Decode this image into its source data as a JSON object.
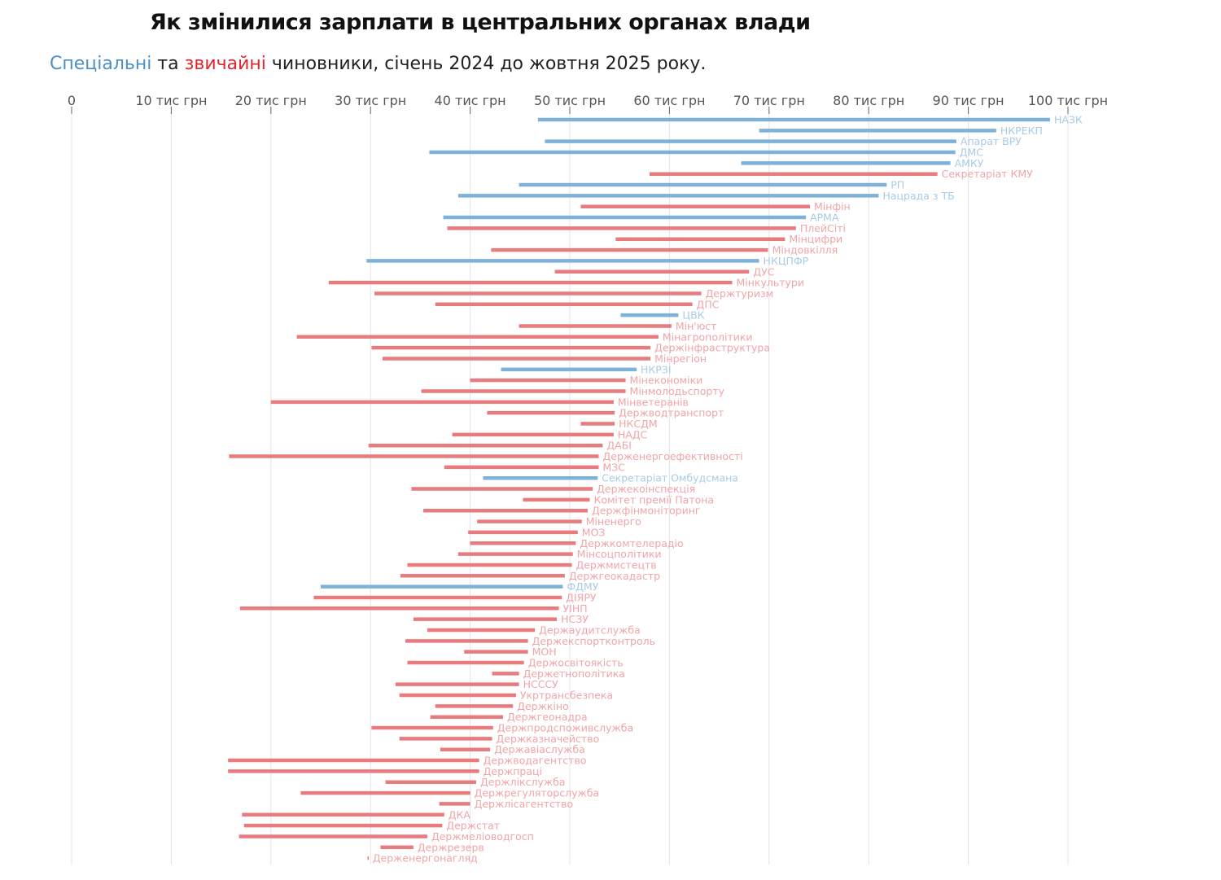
{
  "title": "Як змінилися зарплати в центральних органах влади",
  "subtitle": {
    "special": "Спеціальні",
    "and": " та ",
    "ordinary": "звичайні",
    "rest": " чиновники, січень 2024 до жовтня 2025 року."
  },
  "colors": {
    "special": "#7fb2d8",
    "ordinary": "#e87b7e",
    "special_label": "#a9cbe6",
    "ordinary_label": "#f0a5a8",
    "grid": "#e4e4e8"
  },
  "chart_data": {
    "type": "dumbbell-bar",
    "xlim": [
      0,
      100
    ],
    "x_ticks": [
      {
        "v": 0,
        "label": "0"
      },
      {
        "v": 10,
        "label": "10 тис грн"
      },
      {
        "v": 20,
        "label": "20 тис грн"
      },
      {
        "v": 30,
        "label": "30 тис грн"
      },
      {
        "v": 40,
        "label": "40 тис грн"
      },
      {
        "v": 50,
        "label": "50 тис грн"
      },
      {
        "v": 60,
        "label": "60 тис грн"
      },
      {
        "v": 70,
        "label": "70 тис грн"
      },
      {
        "v": 80,
        "label": "80 тис грн"
      },
      {
        "v": 90,
        "label": "90 тис грн"
      },
      {
        "v": 100,
        "label": "100 тис грн"
      }
    ],
    "grid": true,
    "series_fields": [
      "name",
      "jan_2024",
      "oct_2025",
      "type"
    ],
    "rows": [
      [
        "НАЗК",
        46.8,
        98.2,
        "special"
      ],
      [
        "НКРЕКП",
        69.0,
        92.8,
        "special"
      ],
      [
        "Апарат ВРУ",
        47.5,
        88.8,
        "special"
      ],
      [
        "ДМС",
        35.9,
        88.7,
        "special"
      ],
      [
        "АМКУ",
        67.2,
        88.2,
        "special"
      ],
      [
        "Секретаріат КМУ",
        58.0,
        86.9,
        "ordinary"
      ],
      [
        "РП",
        44.9,
        81.8,
        "special"
      ],
      [
        "Нацрада з ТБ",
        38.8,
        81.0,
        "special"
      ],
      [
        "Мінфін",
        51.1,
        74.1,
        "ordinary"
      ],
      [
        "АРМА",
        37.3,
        73.7,
        "special"
      ],
      [
        "ПлейСіті",
        37.7,
        72.7,
        "ordinary"
      ],
      [
        "Мінцифри",
        54.6,
        71.6,
        "ordinary"
      ],
      [
        "Міндовкілля",
        42.1,
        69.9,
        "ordinary"
      ],
      [
        "НКЦПФР",
        29.6,
        69.0,
        "special"
      ],
      [
        "ДУС",
        48.5,
        68.0,
        "ordinary"
      ],
      [
        "Мінкультури",
        25.8,
        66.3,
        "ordinary"
      ],
      [
        "Держтуризм",
        30.4,
        63.2,
        "ordinary"
      ],
      [
        "ДПС",
        36.5,
        62.3,
        "ordinary"
      ],
      [
        "ЦВК",
        55.1,
        60.9,
        "special"
      ],
      [
        "Мін'юст",
        44.9,
        60.2,
        "ordinary"
      ],
      [
        "Мінагрополітики",
        22.6,
        58.9,
        "ordinary"
      ],
      [
        "Держінфраструктура",
        30.1,
        58.1,
        "ordinary"
      ],
      [
        "Мінрегіон",
        31.2,
        58.1,
        "ordinary"
      ],
      [
        "НКРЗІ",
        43.1,
        56.7,
        "special"
      ],
      [
        "Мінекономіки",
        40.0,
        55.6,
        "ordinary"
      ],
      [
        "Мінмолодьспорту",
        35.1,
        55.6,
        "ordinary"
      ],
      [
        "Мінветеранів",
        20.0,
        54.4,
        "ordinary"
      ],
      [
        "Держводтранспорт",
        41.7,
        54.5,
        "ordinary"
      ],
      [
        "НКСДМ",
        51.1,
        54.5,
        "ordinary"
      ],
      [
        "НАДС",
        38.2,
        54.4,
        "ordinary"
      ],
      [
        "ДАБІ",
        29.8,
        53.3,
        "ordinary"
      ],
      [
        "Держенергоефективності",
        15.8,
        52.9,
        "ordinary"
      ],
      [
        "МЗС",
        37.4,
        52.9,
        "ordinary"
      ],
      [
        "Секретаріат Омбудсмана",
        41.3,
        52.8,
        "special"
      ],
      [
        "Держекоінспекція",
        34.1,
        52.3,
        "ordinary"
      ],
      [
        "Комітет премії Патона",
        45.3,
        52.0,
        "ordinary"
      ],
      [
        "Держфінмоніторинг",
        35.3,
        51.8,
        "ordinary"
      ],
      [
        "Міненерго",
        40.7,
        51.2,
        "ordinary"
      ],
      [
        "МОЗ",
        39.8,
        50.8,
        "ordinary"
      ],
      [
        "Держкомтелерадіо",
        40.0,
        50.6,
        "ordinary"
      ],
      [
        "Мінсоцполітики",
        38.8,
        50.3,
        "ordinary"
      ],
      [
        "Держмистецтв",
        33.7,
        50.2,
        "ordinary"
      ],
      [
        "Держгеокадастр",
        33.0,
        49.5,
        "ordinary"
      ],
      [
        "ФДМУ",
        25.0,
        49.3,
        "special"
      ],
      [
        "ДІЯРУ",
        24.3,
        49.2,
        "ordinary"
      ],
      [
        "УІНП",
        16.9,
        48.9,
        "ordinary"
      ],
      [
        "НСЗУ",
        34.3,
        48.7,
        "ordinary"
      ],
      [
        "Держаудитслужба",
        35.7,
        46.5,
        "ordinary"
      ],
      [
        "Держекспортконтроль",
        33.5,
        45.8,
        "ordinary"
      ],
      [
        "МОН",
        39.4,
        45.8,
        "ordinary"
      ],
      [
        "Держосвітоякість",
        33.7,
        45.4,
        "ordinary"
      ],
      [
        "Держетнополітика",
        42.2,
        44.9,
        "ordinary"
      ],
      [
        "НСССУ",
        32.5,
        44.9,
        "ordinary"
      ],
      [
        "Укртрансбезпека",
        32.9,
        44.6,
        "ordinary"
      ],
      [
        "Держкіно",
        36.5,
        44.3,
        "ordinary"
      ],
      [
        "Держгеонадра",
        36.0,
        43.3,
        "ordinary"
      ],
      [
        "Держпродспоживслужба",
        30.1,
        42.3,
        "ordinary"
      ],
      [
        "Держказначейство",
        32.9,
        42.2,
        "ordinary"
      ],
      [
        "Державіаслужба",
        37.0,
        42.0,
        "ordinary"
      ],
      [
        "Держводагентство",
        15.7,
        40.9,
        "ordinary"
      ],
      [
        "Держпраці",
        15.7,
        40.9,
        "ordinary"
      ],
      [
        "Держлікслужба",
        31.5,
        40.6,
        "ordinary"
      ],
      [
        "Держрегуляторслужба",
        23.0,
        40.0,
        "ordinary"
      ],
      [
        "Держлісагентство",
        36.9,
        40.0,
        "ordinary"
      ],
      [
        "ДКА",
        17.1,
        37.4,
        "ordinary"
      ],
      [
        "Держстат",
        17.3,
        37.2,
        "ordinary"
      ],
      [
        "Держмеліоводгосп",
        16.8,
        35.7,
        "ordinary"
      ],
      [
        "Держрезерв",
        31.0,
        34.3,
        "ordinary"
      ],
      [
        "Держенергонагляд",
        29.7,
        29.8,
        "ordinary"
      ]
    ]
  }
}
